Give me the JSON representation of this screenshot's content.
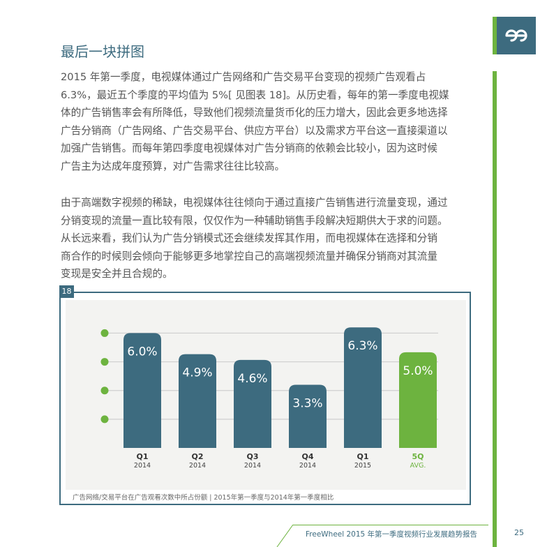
{
  "header": {
    "title": "最后一块拼图",
    "logo_icon": "freewheel-logo-icon"
  },
  "paragraphs": [
    [
      "2015 年第一季度，电视媒体通过广告网络和广告交易平台变现的视频广告观看占",
      "6.3%，最近五个季度的平均值为 5%[ 见图表 18]。从历史看，每年的第一季度电视媒",
      "体的广告销售率会有所降低，导致他们视频流量货币化的压力增大，因此会更多地选择",
      "广告分销商（广告网络、广告交易平台、供应方平台）以及需求方平台这一直接渠道以",
      "加强广告销售。而每年第四季度电视媒体对广告分销商的依赖会比较小，因为这时候",
      "广告主为达成年度预算，对广告需求往往比较高。"
    ],
    [
      "由于高端数字视频的稀缺，电视媒体往往倾向于通过直接广告销售进行流量变现，通过",
      "分销变现的流量一直比较有限，仅仅作为一种辅助销售手段解决短期供大于求的问题。",
      "从长远来看，我们认为广告分销模式还会继续发挥其作用，而电视媒体在选择和分销",
      "商合作的时候则会倾向于能够更多地掌控自己的高端视频流量并确保分销商对其流量",
      "变现是安全并且合规的。"
    ]
  ],
  "chart": {
    "number": "18",
    "caption": "广告网络/交易平台在广告观看次数中所占份额 | 2015年第一季度与2014年第一季度相比"
  },
  "chart_data": {
    "type": "bar",
    "categories": [
      "Q1 2014",
      "Q2 2014",
      "Q3 2014",
      "Q4 2014",
      "Q1 2015",
      "5Q AVG."
    ],
    "tick_labels": [
      {
        "main": "Q1",
        "sub": "2014"
      },
      {
        "main": "Q2",
        "sub": "2014"
      },
      {
        "main": "Q3",
        "sub": "2014"
      },
      {
        "main": "Q4",
        "sub": "2014"
      },
      {
        "main": "Q1",
        "sub": "2015"
      },
      {
        "main": "5Q",
        "sub": "AVG."
      }
    ],
    "values": [
      6.0,
      4.9,
      4.6,
      3.3,
      6.3,
      5.0
    ],
    "value_labels": [
      "6.0%",
      "4.9%",
      "4.6%",
      "3.3%",
      "6.3%",
      "5.0%"
    ],
    "ylim": [
      0,
      7
    ],
    "grid_values": [
      1.5,
      3.0,
      4.5,
      6.0
    ],
    "grid": true,
    "colors": {
      "bar": "#3d6b7f",
      "avg_bar": "#6db33f",
      "grid": "#cfcfcf",
      "dot": "#6db33f",
      "label": "#ffffff"
    }
  },
  "footer": {
    "text": "FreeWheel 2015 年第一季度视频行业发展趋势报告",
    "page": "25"
  }
}
